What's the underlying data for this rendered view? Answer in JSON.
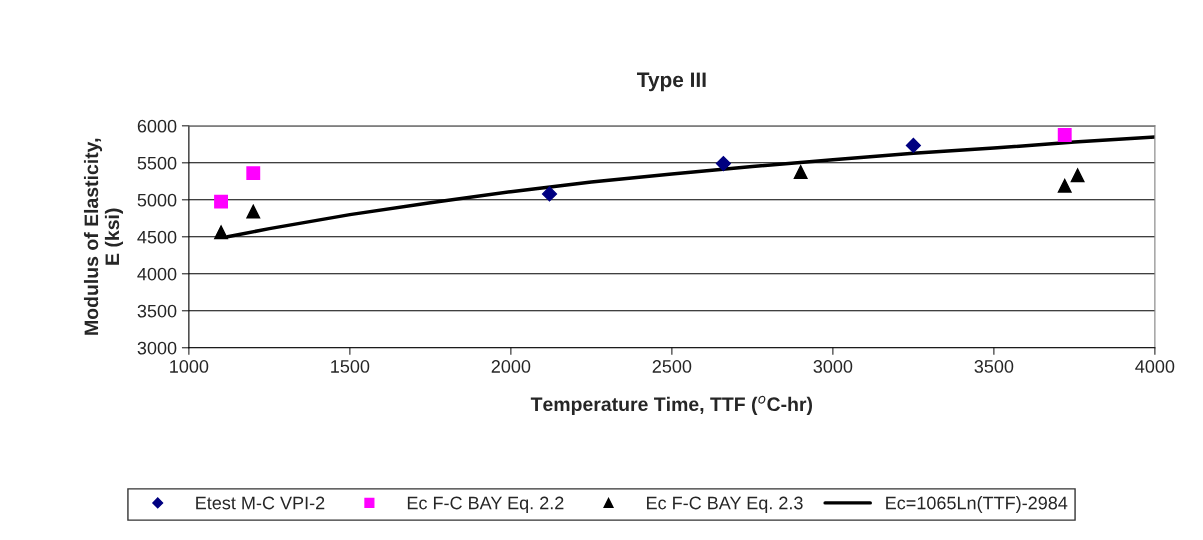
{
  "chart_data": {
    "type": "scatter",
    "title": "Type III",
    "xlabel": "Temperature Time, TTF ($^{o}$C-hr)",
    "ylabel": "Modulus of Elasticity,\nE (ksi)",
    "xlim": [
      1000,
      4000
    ],
    "xticks": [
      1000,
      1500,
      2000,
      2500,
      3000,
      3500,
      4000
    ],
    "ylim": [
      3000,
      6000
    ],
    "yticks": [
      3000,
      3500,
      4000,
      4500,
      5000,
      5500,
      6000
    ],
    "grid": "y",
    "legend": "bottom",
    "series": [
      {
        "name": "Etest M-C VPI-2",
        "color": "#000080",
        "marker": "diamond",
        "x": [
          2120,
          2660,
          3250
        ],
        "values": [
          5080,
          5490,
          5735
        ]
      },
      {
        "name": "Ec F-C BAY Eq. 2.2",
        "color": "#ff00ff",
        "marker": "square",
        "x": [
          1100,
          1200,
          3720
        ],
        "values": [
          4975,
          5360,
          5875
        ]
      },
      {
        "name": "Ec F-C BAY Eq. 2.3",
        "color": "#000000",
        "marker": "triangle",
        "x": [
          1100,
          1200,
          2900,
          3720,
          3760
        ],
        "values": [
          4560,
          4840,
          5375,
          5190,
          5330
        ]
      },
      {
        "name": "Ec=1065Ln(TTF)-2984",
        "type": "line",
        "color": "#000000",
        "marker": "none",
        "line_style": "solid",
        "x": [
          1120,
          1250,
          1500,
          1750,
          2000,
          2250,
          2500,
          2750,
          3000,
          3250,
          3500,
          3750,
          4000
        ],
        "values": [
          4500,
          4610,
          4800,
          4960,
          5110,
          5240,
          5350,
          5450,
          5540,
          5630,
          5700,
          5780,
          5850
        ]
      }
    ]
  }
}
